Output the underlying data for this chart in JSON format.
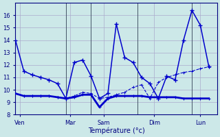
{
  "bg_color": "#cce8e8",
  "grid_color": "#aaaacc",
  "line_color": "#0000cc",
  "xlabel": "Température (°c)",
  "ylim": [
    8,
    17
  ],
  "yticks": [
    8,
    9,
    10,
    11,
    12,
    13,
    14,
    15,
    16
  ],
  "xlim": [
    0,
    24
  ],
  "x_vlines": [
    6,
    9,
    14.5,
    21
  ],
  "x_day_labels": [
    "Ven",
    "Mar",
    "Sam",
    "Dim",
    "Lun"
  ],
  "x_day_positions": [
    0.5,
    6.5,
    10.5,
    16.5,
    22.0
  ],
  "line1_x": [
    0,
    1,
    2,
    3,
    4,
    5,
    6,
    7,
    8,
    9,
    10,
    11,
    12,
    13,
    14,
    15,
    16,
    17,
    18,
    19,
    20,
    21,
    22,
    23
  ],
  "line1_y": [
    14.0,
    11.5,
    11.2,
    11.0,
    10.8,
    10.5,
    9.3,
    12.2,
    12.4,
    11.1,
    9.3,
    9.7,
    15.3,
    12.6,
    12.2,
    11.0,
    10.5,
    9.3,
    11.1,
    10.8,
    14.0,
    16.4,
    15.2,
    11.9
  ],
  "line2_x": [
    0,
    1,
    2,
    3,
    4,
    5,
    6,
    7,
    8,
    9,
    10,
    11,
    12,
    13,
    14,
    15,
    16,
    17,
    18,
    19,
    20,
    21,
    22,
    23
  ],
  "line2_y": [
    9.7,
    9.5,
    9.5,
    9.5,
    9.5,
    9.4,
    9.3,
    9.5,
    9.8,
    9.7,
    9.3,
    9.4,
    9.6,
    9.8,
    10.2,
    10.4,
    9.3,
    10.6,
    11.0,
    11.2,
    11.4,
    11.5,
    11.7,
    11.85
  ],
  "line3_x": [
    0,
    1,
    2,
    3,
    4,
    5,
    6,
    7,
    8,
    9,
    10,
    11,
    12,
    13,
    14,
    15,
    16,
    17,
    18,
    19,
    20,
    21,
    22,
    23
  ],
  "line3_y": [
    9.7,
    9.5,
    9.5,
    9.5,
    9.5,
    9.4,
    9.3,
    9.4,
    9.6,
    9.6,
    8.6,
    9.3,
    9.5,
    9.5,
    9.5,
    9.5,
    9.4,
    9.4,
    9.4,
    9.4,
    9.3,
    9.3,
    9.3,
    9.3
  ]
}
